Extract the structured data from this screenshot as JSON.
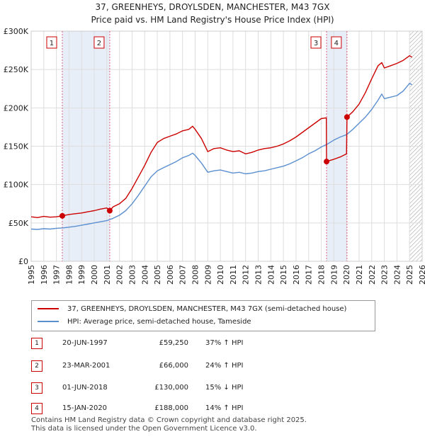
{
  "chart_data": {
    "type": "line",
    "title": "37, GREENHEYS, DROYLSDEN, MANCHESTER, M43 7GX",
    "subtitle": "Price paid vs. HM Land Registry's House Price Index (HPI)",
    "xlabel": "",
    "ylabel": "",
    "xlim": [
      1995,
      2026
    ],
    "ylim": [
      0,
      300000
    ],
    "y_ticks": [
      0,
      50000,
      100000,
      150000,
      200000,
      250000,
      300000
    ],
    "y_tick_labels": [
      "£0",
      "£50K",
      "£100K",
      "£150K",
      "£200K",
      "£250K",
      "£300K"
    ],
    "x_ticks": [
      1995,
      1996,
      1997,
      1998,
      1999,
      2000,
      2001,
      2002,
      2003,
      2004,
      2005,
      2006,
      2007,
      2008,
      2009,
      2010,
      2011,
      2012,
      2013,
      2014,
      2015,
      2016,
      2017,
      2018,
      2019,
      2020,
      2021,
      2022,
      2023,
      2024,
      2025,
      2026
    ],
    "x_tick_labels": [
      "1995",
      "1996",
      "1997",
      "1998",
      "1999",
      "2000",
      "2001",
      "2002",
      "2003",
      "2004",
      "2005",
      "2006",
      "2007",
      "2008",
      "2009",
      "2010",
      "2011",
      "2012",
      "2013",
      "2014",
      "2015",
      "2016",
      "2017",
      "2018",
      "2019",
      "2020",
      "2021",
      "2022",
      "2023",
      "2024",
      "2025",
      "2026"
    ],
    "grid": true,
    "shaded_periods": [
      [
        1997.47,
        2001.23
      ],
      [
        2018.42,
        2020.04
      ]
    ],
    "future_hatch_from": 2025.0,
    "series": [
      {
        "name": "37, GREENHEYS, DROYLSDEN, MANCHESTER, M43 7GX (semi-detached house)",
        "color": "#cc0000",
        "x": [
          1995,
          1995.5,
          1996,
          1996.5,
          1997,
          1997.47,
          1998,
          1998.5,
          1999,
          1999.5,
          2000,
          2000.5,
          2001.0,
          2001.23,
          2001.5,
          2002,
          2002.5,
          2003,
          2003.5,
          2004,
          2004.5,
          2005,
          2005.5,
          2006,
          2006.5,
          2007,
          2007.5,
          2007.8,
          2008,
          2008.5,
          2009,
          2009.5,
          2010,
          2010.5,
          2011,
          2011.5,
          2012,
          2012.5,
          2013,
          2013.5,
          2014,
          2014.5,
          2015,
          2015.5,
          2016,
          2016.5,
          2017,
          2017.5,
          2018.0,
          2018.4,
          2018.42,
          2018.6,
          2019,
          2019.5,
          2020.0,
          2020.04,
          2020.5,
          2021,
          2021.5,
          2022,
          2022.5,
          2022.8,
          2023,
          2023.5,
          2024,
          2024.5,
          2025.0,
          2025.2
        ],
        "values": [
          58000,
          57000,
          58500,
          57500,
          58000,
          59250,
          61000,
          62000,
          63000,
          64500,
          66000,
          68000,
          69500,
          66000,
          71000,
          75000,
          82000,
          95000,
          110000,
          125000,
          142000,
          155000,
          160000,
          163000,
          166000,
          170000,
          172000,
          176000,
          172000,
          160000,
          143000,
          147000,
          148000,
          145000,
          143000,
          144000,
          140000,
          142000,
          145000,
          147000,
          148000,
          150000,
          153000,
          157000,
          162000,
          168000,
          174000,
          180000,
          186000,
          187000,
          130000,
          131000,
          133000,
          136000,
          140000,
          188000,
          195000,
          205000,
          220000,
          238000,
          255000,
          259000,
          252000,
          255000,
          258000,
          262000,
          268000,
          266000
        ]
      },
      {
        "name": "HPI: Average price, semi-detached house, Tameside",
        "color": "#5b8fd0",
        "x": [
          1995,
          1995.5,
          1996,
          1996.5,
          1997,
          1997.5,
          1998,
          1998.5,
          1999,
          1999.5,
          2000,
          2000.5,
          2001,
          2001.5,
          2002,
          2002.5,
          2003,
          2003.5,
          2004,
          2004.5,
          2005,
          2005.5,
          2006,
          2006.5,
          2007,
          2007.5,
          2007.8,
          2008,
          2008.5,
          2009,
          2009.5,
          2010,
          2010.5,
          2011,
          2011.5,
          2012,
          2012.5,
          2013,
          2013.5,
          2014,
          2014.5,
          2015,
          2015.5,
          2016,
          2016.5,
          2017,
          2017.5,
          2018,
          2018.5,
          2019,
          2019.5,
          2020,
          2020.5,
          2021,
          2021.5,
          2022,
          2022.5,
          2022.8,
          2023,
          2023.5,
          2024,
          2024.5,
          2025.0,
          2025.2
        ],
        "values": [
          42000,
          41500,
          42500,
          42000,
          43000,
          43500,
          44500,
          45500,
          47000,
          48500,
          50000,
          51500,
          53000,
          56000,
          60000,
          66000,
          75000,
          86000,
          98000,
          110000,
          118000,
          122000,
          126000,
          130000,
          135000,
          138000,
          141000,
          138000,
          128000,
          116000,
          118000,
          119000,
          117000,
          115000,
          116000,
          114000,
          115000,
          117000,
          118000,
          120000,
          122000,
          124000,
          127000,
          131000,
          135000,
          140000,
          144000,
          149000,
          153000,
          158000,
          162000,
          165000,
          172000,
          180000,
          188000,
          198000,
          210000,
          218000,
          212000,
          214000,
          216000,
          222000,
          232000,
          230000
        ]
      }
    ],
    "annotations": [
      {
        "label": "1",
        "x": 1997.47
      },
      {
        "label": "2",
        "x": 2001.23
      },
      {
        "label": "3",
        "x": 2018.42
      },
      {
        "label": "4",
        "x": 2020.04
      }
    ],
    "sale_points": [
      {
        "x": 1997.47,
        "y": 59250
      },
      {
        "x": 2001.23,
        "y": 66000
      },
      {
        "x": 2018.42,
        "y": 130000
      },
      {
        "x": 2020.04,
        "y": 188000
      }
    ],
    "colors": {
      "property_line": "#cc0000",
      "hpi_line": "#5b8fd0",
      "shade": "#e8eef8",
      "grid": "#dddddd",
      "vline": "#e06080"
    }
  },
  "legend": {
    "items": [
      {
        "label": "37, GREENHEYS, DROYLSDEN, MANCHESTER, M43 7GX (semi-detached house)",
        "color": "#cc0000"
      },
      {
        "label": "HPI: Average price, semi-detached house, Tameside",
        "color": "#5b8fd0"
      }
    ]
  },
  "transactions": [
    {
      "num": "1",
      "date": "20-JUN-1997",
      "price": "£59,250",
      "hpi": "37% ↑ HPI"
    },
    {
      "num": "2",
      "date": "23-MAR-2001",
      "price": "£66,000",
      "hpi": "24% ↑ HPI"
    },
    {
      "num": "3",
      "date": "01-JUN-2018",
      "price": "£130,000",
      "hpi": "15% ↓ HPI"
    },
    {
      "num": "4",
      "date": "15-JAN-2020",
      "price": "£188,000",
      "hpi": "14% ↑ HPI"
    }
  ],
  "footer": {
    "line1": "Contains HM Land Registry data © Crown copyright and database right 2025.",
    "line2": "This data is licensed under the Open Government Licence v3.0."
  }
}
